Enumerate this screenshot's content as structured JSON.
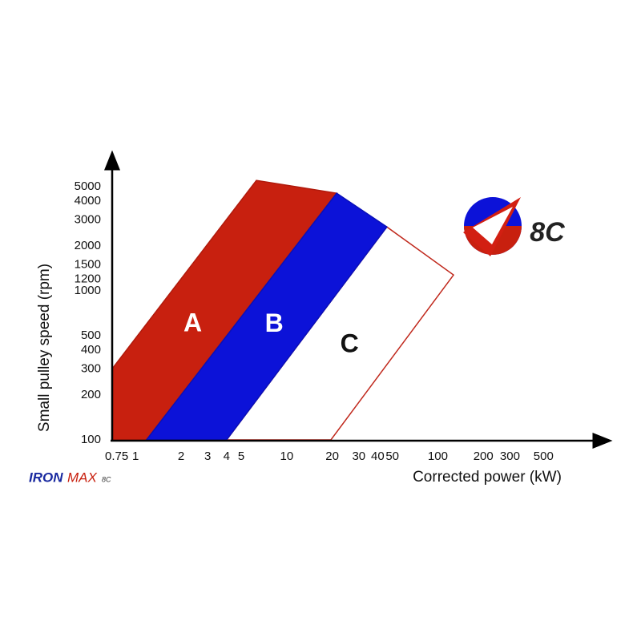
{
  "chart_data": {
    "type": "polygon",
    "x_label": "Corrected power (kW)",
    "y_label": "Small pulley speed (rpm)",
    "xscale": "log",
    "yscale": "log",
    "xlim": [
      0.7,
      1200
    ],
    "ylim": [
      100,
      7000
    ],
    "xticks": [
      0.75,
      1,
      2,
      3,
      4,
      5,
      10,
      20,
      30,
      40,
      50,
      100,
      200,
      300,
      500
    ],
    "yticks": [
      100,
      200,
      300,
      400,
      500,
      1000,
      1200,
      1500,
      2000,
      3000,
      4000,
      5000
    ],
    "series": [
      {
        "name": "C",
        "color": "#ffffff",
        "edge_color": "#c0281c",
        "label_color": "#111111",
        "x": [
          4.0,
          46,
          127,
          19.6
        ],
        "y": [
          100,
          2690,
          1280,
          100
        ]
      },
      {
        "name": "A",
        "color": "#c8200f",
        "edge_color": "#b01a0c",
        "label_color": "#ffffff",
        "x": [
          0.7,
          0.7,
          1.18,
          21.4,
          6.3
        ],
        "y": [
          300,
          100,
          100,
          4530,
          5520
        ]
      },
      {
        "name": "B",
        "color": "#0c12d8",
        "edge_color": "#0a10b8",
        "label_color": "#ffffff",
        "x": [
          1.18,
          4.0,
          46,
          21.4
        ],
        "y": [
          100,
          100,
          2690,
          4530
        ]
      }
    ]
  },
  "logos": {
    "brand": "8C",
    "iron": "IRON",
    "max": "MAX",
    "sub": "8C"
  }
}
